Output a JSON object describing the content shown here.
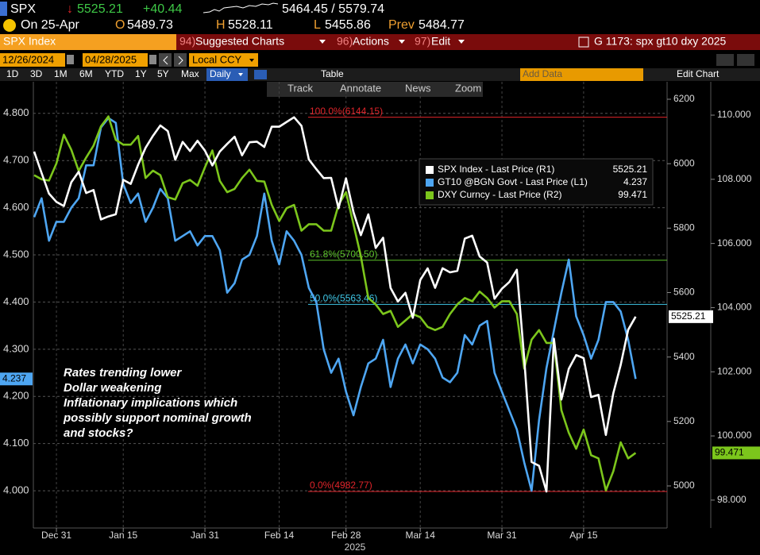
{
  "header": {
    "ticker": "SPX",
    "arrow": "↓",
    "last": "5525.21",
    "change": "+40.44",
    "range": "5464.45 / 5579.74",
    "date": "On 25-Apr",
    "open_label": "O",
    "open": "5489.73",
    "high_label": "H",
    "high": "5528.11",
    "low_label": "L",
    "low": "5455.86",
    "prev_label": "Prev",
    "prev": "5484.77"
  },
  "menu": {
    "security": "SPX Index",
    "buttons": [
      {
        "key": "94)",
        "label": "Suggested Charts"
      },
      {
        "key": "96)",
        "label": "Actions"
      },
      {
        "key": "97)",
        "label": "Edit"
      }
    ],
    "chart_id": "G 1173: spx gt10 dxy 2025"
  },
  "controls": {
    "start": "12/26/2024",
    "end": "04/28/2025",
    "currency": "Local CCY",
    "periods": [
      "1D",
      "3D",
      "1M",
      "6M",
      "YTD",
      "1Y",
      "5Y",
      "Max"
    ],
    "frequency": "Daily",
    "table": "Table",
    "add_data": "Add Data",
    "edit_chart": "Edit Chart"
  },
  "chart_tools": [
    "Track",
    "Annotate",
    "News",
    "Zoom"
  ],
  "chart_data": {
    "type": "line",
    "categories": [
      null,
      null,
      null,
      "Dec 31",
      null,
      null,
      null,
      null,
      null,
      null,
      null,
      null,
      "Jan 15",
      null,
      null,
      null,
      null,
      null,
      null,
      null,
      null,
      null,
      null,
      "Jan 31",
      null,
      null,
      null,
      null,
      null,
      null,
      null,
      null,
      null,
      "Feb 14",
      null,
      null,
      null,
      null,
      null,
      null,
      null,
      null,
      "Feb 28",
      null,
      null,
      null,
      null,
      null,
      null,
      null,
      null,
      null,
      "Mar 14",
      null,
      null,
      null,
      null,
      null,
      null,
      null,
      null,
      null,
      null,
      "Mar 31",
      null,
      null,
      null,
      null,
      null,
      null,
      null,
      null,
      null,
      null,
      "Apr 15",
      null,
      null,
      null,
      null,
      null,
      null,
      null
    ],
    "year_label": "2025",
    "series": [
      {
        "name": "SPX Index - Last Price (R1)",
        "color": "#ffffff",
        "axis": "y2",
        "values": [
          6037.59,
          5970.84,
          5906.94,
          5881.63,
          5868.55,
          5942.47,
          5975.38,
          5909.03,
          5918.25,
          5827.04,
          5836.22,
          5842.91,
          5949.91,
          5937.34,
          5996.66,
          6049.24,
          6086.37,
          6118.71,
          6101.24,
          6012.28,
          6067.7,
          6039.31,
          6071.17,
          6040.53,
          5994.57,
          6037.88,
          6061.48,
          6083.57,
          6025.99,
          6066.44,
          6068.5,
          6051.97,
          6115.07,
          6114.63,
          6129.58,
          6144.15,
          6117.52,
          6013.13,
          5983.25,
          5955.25,
          5956.06,
          5861.57,
          5954.5,
          5849.72,
          5778.15,
          5842.63,
          5738.52,
          5770.2,
          5614.56,
          5572.07,
          5599.3,
          5521.52,
          5638.94,
          5675.12,
          5614.66,
          5675.29,
          5662.89,
          5667.56,
          5767.57,
          5776.65,
          5712.2,
          5693.31,
          5580.94,
          5611.85,
          5633.07,
          5670.97,
          5396.52,
          5074.08,
          5062.25,
          4982.77,
          5456.9,
          5268.05,
          5363.36,
          5405.97,
          5396.63,
          5275.7,
          5282.7,
          5158.2,
          5287.76,
          5375.86,
          5484.77,
          5525.21
        ]
      },
      {
        "name": "GT10 @BGN Govt - Last Price (L1)",
        "color": "#4ea6f2",
        "axis": "y",
        "values": [
          4.58,
          4.62,
          4.53,
          4.57,
          4.57,
          4.6,
          4.62,
          4.69,
          4.69,
          4.77,
          4.79,
          4.78,
          4.65,
          4.61,
          4.63,
          4.57,
          4.6,
          4.64,
          4.62,
          4.53,
          4.54,
          4.55,
          4.52,
          4.54,
          4.54,
          4.51,
          4.42,
          4.44,
          4.49,
          4.5,
          4.54,
          4.63,
          4.53,
          4.48,
          4.55,
          4.53,
          4.5,
          4.43,
          4.4,
          4.3,
          4.25,
          4.28,
          4.21,
          4.16,
          4.22,
          4.27,
          4.28,
          4.32,
          4.22,
          4.28,
          4.31,
          4.27,
          4.31,
          4.3,
          4.28,
          4.24,
          4.23,
          4.25,
          4.33,
          4.31,
          4.35,
          4.36,
          4.25,
          4.21,
          4.17,
          4.13,
          4.06,
          4.0,
          4.15,
          4.26,
          4.34,
          4.42,
          4.49,
          4.37,
          4.33,
          4.28,
          4.32,
          4.4,
          4.4,
          4.38,
          4.32,
          4.237
        ]
      },
      {
        "name": "DXY Curncy - Last Price (R2)",
        "color": "#7cc61c",
        "axis": "y3",
        "values": [
          108.13,
          108.0,
          107.96,
          108.49,
          109.39,
          108.92,
          108.26,
          108.68,
          109.05,
          109.65,
          109.96,
          109.23,
          109.08,
          109.08,
          109.35,
          108.04,
          108.27,
          108.13,
          107.44,
          107.37,
          107.88,
          107.98,
          107.8,
          108.37,
          108.9,
          107.95,
          107.6,
          107.7,
          108.04,
          108.3,
          107.95,
          107.93,
          107.2,
          106.7,
          107.1,
          107.2,
          106.4,
          106.6,
          106.6,
          106.4,
          106.4,
          107.2,
          107.6,
          106.6,
          105.6,
          104.3,
          104.1,
          103.8,
          103.9,
          103.4,
          103.6,
          103.8,
          103.7,
          103.4,
          103.3,
          103.4,
          103.8,
          104.1,
          104.3,
          104.2,
          104.5,
          104.3,
          104.0,
          104.2,
          104.2,
          103.8,
          102.1,
          103.0,
          103.3,
          102.9,
          102.9,
          100.8,
          100.1,
          99.6,
          100.2,
          99.4,
          99.3,
          98.3,
          98.9,
          99.8,
          99.3,
          99.471
        ]
      }
    ],
    "ylim": [
      3.921,
      4.867
    ],
    "yticks": [
      {
        "value": 4.0,
        "label": "4.000"
      },
      {
        "value": 4.1,
        "label": "4.100"
      },
      {
        "value": 4.2,
        "label": "4.200"
      },
      {
        "value": 4.3,
        "label": "4.300"
      },
      {
        "value": 4.4,
        "label": "4.400"
      },
      {
        "value": 4.5,
        "label": "4.500"
      },
      {
        "value": 4.6,
        "label": "4.600"
      },
      {
        "value": 4.7,
        "label": "4.700"
      },
      {
        "value": 4.8,
        "label": "4.800"
      }
    ],
    "y2lim": [
      4869.4,
      6254.2
    ],
    "y2ticks": [
      5000,
      5200,
      5400,
      5600,
      5800,
      6000,
      6200
    ],
    "y3lim": [
      97.13,
      111.04
    ],
    "y3ticks": [
      {
        "value": 98,
        "label": "98.000"
      },
      {
        "value": 100,
        "label": "100.000"
      },
      {
        "value": 102,
        "label": "102.000"
      },
      {
        "value": 104,
        "label": "104.000"
      },
      {
        "value": 106,
        "label": "106.000"
      },
      {
        "value": 108,
        "label": "108.000"
      },
      {
        "value": 110,
        "label": "110.000"
      }
    ],
    "grid": true,
    "retracements": [
      {
        "value": 6144.15,
        "label": "100.0%(6144.15)",
        "color": "#e0242a"
      },
      {
        "value": 5700.5,
        "label": "61.8%(5700.50)",
        "color": "#5cc22a"
      },
      {
        "value": 5563.46,
        "label": "50.0%(5563.46)",
        "color": "#3fc6e6"
      },
      {
        "value": 4982.77,
        "label": "0.0%(4982.77)",
        "color": "#e0242a"
      }
    ],
    "annotation": [
      "Rates trending lower",
      "Dollar weakening",
      "Inflationary implications which",
      "possibly support nominal growth",
      "and stocks?"
    ]
  }
}
